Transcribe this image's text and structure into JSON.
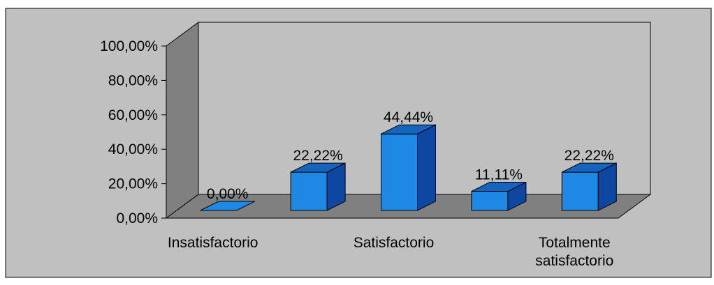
{
  "colors": {
    "page_background": "#ffffff",
    "plot_area_fill": "#c0c0c0",
    "back_wall_fill": "#c0c0c0",
    "side_wall_fill": "#808080",
    "floor_fill": "#808080",
    "bar_front": "#1e88e5",
    "bar_top": "#1565c0",
    "bar_side": "#0d47a1",
    "outline": "#000000"
  },
  "chart_data": {
    "type": "bar",
    "three_d": true,
    "categories": [
      "Insatisfactorio",
      "",
      "Satisfactorio",
      "",
      "Totalmente satisfactorio"
    ],
    "category_label_lines": [
      [
        "Insatisfactorio"
      ],
      [],
      [
        "Satisfactorio"
      ],
      [],
      [
        "Totalmente",
        "satisfactorio"
      ]
    ],
    "values": [
      0.0,
      22.22,
      44.44,
      11.11,
      22.22
    ],
    "data_labels": [
      "0,00%",
      "22,22%",
      "44,44%",
      "11,11%",
      "22,22%"
    ],
    "ylim": [
      0,
      100
    ],
    "y_ticks": [
      0,
      20,
      40,
      60,
      80,
      100
    ],
    "y_tick_labels": [
      "0,00%",
      "20,00%",
      "40,00%",
      "60,00%",
      "80,00%",
      "100,00%"
    ],
    "grid": false,
    "legend": "none"
  }
}
